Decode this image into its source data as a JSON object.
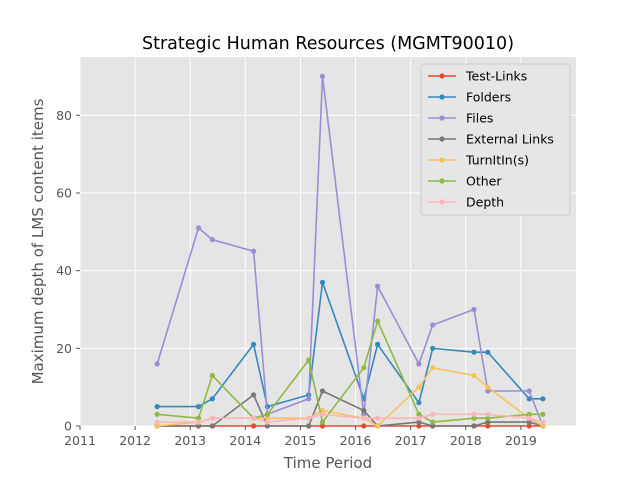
{
  "chart_data": {
    "type": "line",
    "title": "Strategic Human Resources (MGMT90010)",
    "xlabel": "Time Period",
    "ylabel": "Maximum depth of LMS content items",
    "xlim": [
      2011.0,
      2020.0
    ],
    "ylim": [
      0,
      95
    ],
    "xticks": [
      "2011",
      "2012",
      "2013",
      "2014",
      "2015",
      "2016",
      "2017",
      "2018",
      "2019"
    ],
    "yticks": [
      "0",
      "20",
      "40",
      "60",
      "80"
    ],
    "grid": true,
    "legend_position": "top-right",
    "x": [
      2012.4,
      2013.15,
      2013.4,
      2014.15,
      2014.4,
      2015.15,
      2015.4,
      2016.15,
      2016.4,
      2017.15,
      2017.4,
      2018.15,
      2018.4,
      2019.15,
      2019.4
    ],
    "series": [
      {
        "name": "Test-Links",
        "color": "#E24A33",
        "values": [
          0,
          0,
          0,
          0,
          0,
          0,
          0,
          0,
          0,
          0,
          0,
          0,
          0,
          0,
          0
        ]
      },
      {
        "name": "Folders",
        "color": "#348ABD",
        "values": [
          5,
          5,
          7,
          21,
          5,
          8,
          37,
          7,
          21,
          6,
          20,
          19,
          19,
          7,
          7
        ]
      },
      {
        "name": "Files",
        "color": "#988ED5",
        "values": [
          16,
          51,
          48,
          45,
          3,
          7,
          90,
          3,
          36,
          16,
          26,
          30,
          9,
          9,
          0
        ]
      },
      {
        "name": "External Links",
        "color": "#777777",
        "values": [
          0,
          0,
          0,
          8,
          0,
          0,
          9,
          4,
          0,
          1,
          0,
          0,
          1,
          1,
          0
        ]
      },
      {
        "name": "TurnItIn(s)",
        "color": "#FBC15E",
        "values": [
          0,
          1,
          2,
          2,
          2,
          2,
          4,
          2,
          0,
          10,
          15,
          13,
          10,
          2,
          0
        ]
      },
      {
        "name": "Other",
        "color": "#8EBA42",
        "values": [
          3,
          2,
          13,
          2,
          3,
          17,
          1,
          15,
          27,
          3,
          1,
          2,
          2,
          3,
          3
        ]
      },
      {
        "name": "Depth",
        "color": "#FFB5B8",
        "values": [
          1,
          1,
          2,
          2,
          1,
          2,
          3,
          2,
          2,
          2,
          3,
          3,
          3,
          2,
          1
        ]
      }
    ]
  }
}
